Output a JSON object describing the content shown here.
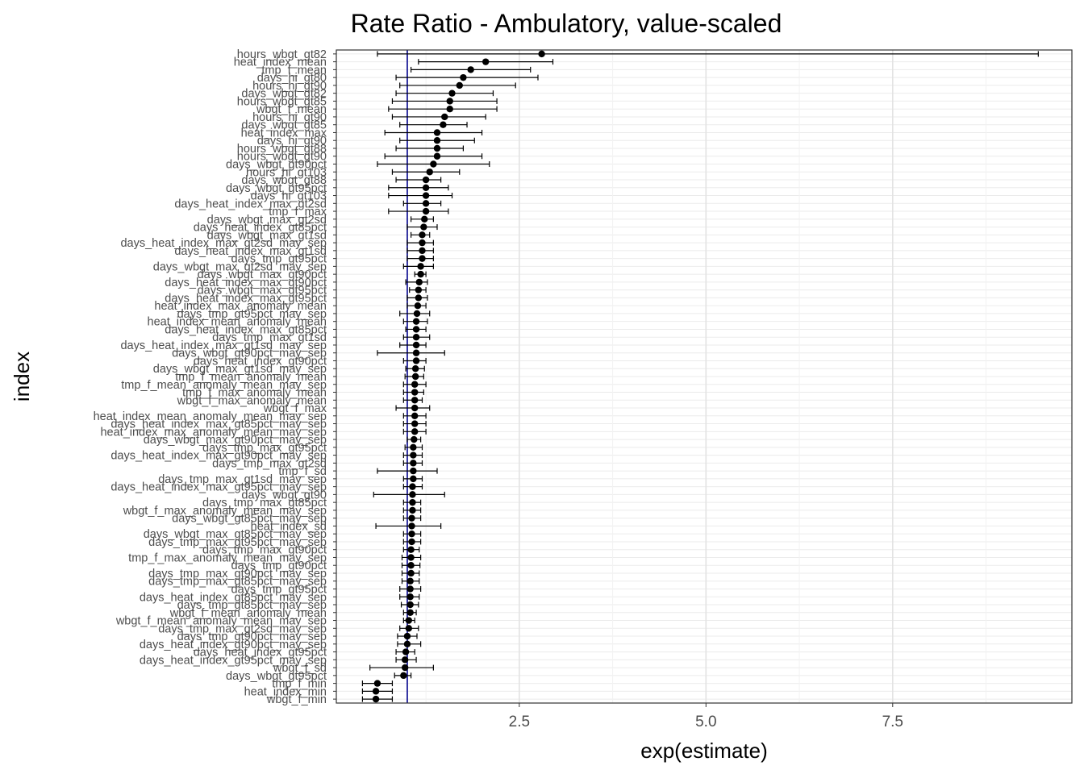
{
  "chart_data": {
    "type": "forest",
    "title": "Rate Ratio - Ambulatory, value-scaled",
    "xlabel": "exp(estimate)",
    "ylabel": "index",
    "xlim": [
      0.05,
      9.9
    ],
    "xticks": [
      2.5,
      5.0,
      7.5
    ],
    "xtick_labels": [
      "2.5",
      "5.0",
      "7.5"
    ],
    "reference_line": 1.0,
    "reference_color": "#00008b",
    "point_color": "#000000",
    "grid": true,
    "points": [
      {
        "label": "hours_wbgt_gt82",
        "estimate": 2.8,
        "low": 0.6,
        "high": 9.45
      },
      {
        "label": "heat_index_mean",
        "estimate": 2.05,
        "low": 1.15,
        "high": 2.95
      },
      {
        "label": "tmp_f_mean",
        "estimate": 1.85,
        "low": 1.05,
        "high": 2.65
      },
      {
        "label": "days_hi_gt80",
        "estimate": 1.75,
        "low": 0.85,
        "high": 2.75
      },
      {
        "label": "hours_hi_gt90",
        "estimate": 1.7,
        "low": 0.9,
        "high": 2.45
      },
      {
        "label": "days_wbgt_gt82",
        "estimate": 1.6,
        "low": 0.85,
        "high": 2.15
      },
      {
        "label": "hours_wbgt_gt85",
        "estimate": 1.57,
        "low": 0.8,
        "high": 2.2
      },
      {
        "label": "wbgt_f_mean",
        "estimate": 1.57,
        "low": 0.75,
        "high": 2.2
      },
      {
        "label": "hours_hi_gt90",
        "estimate": 1.5,
        "low": 0.8,
        "high": 2.05
      },
      {
        "label": "days_wbgt_gt85",
        "estimate": 1.48,
        "low": 0.9,
        "high": 1.8
      },
      {
        "label": "heat_index_max",
        "estimate": 1.4,
        "low": 0.7,
        "high": 2.0
      },
      {
        "label": "days_hi_gt90",
        "estimate": 1.4,
        "low": 0.9,
        "high": 1.9
      },
      {
        "label": "hours_wbgt_gt88",
        "estimate": 1.4,
        "low": 0.85,
        "high": 1.75
      },
      {
        "label": "hours_wbgt_gt90",
        "estimate": 1.4,
        "low": 0.7,
        "high": 2.0
      },
      {
        "label": "days_wbgt_gt90pct",
        "estimate": 1.35,
        "low": 0.6,
        "high": 2.1
      },
      {
        "label": "hours_hi_gt103",
        "estimate": 1.3,
        "low": 0.8,
        "high": 1.7
      },
      {
        "label": "days_wbgt_gt88",
        "estimate": 1.25,
        "low": 0.85,
        "high": 1.45
      },
      {
        "label": "days_wbgt_gt95pct",
        "estimate": 1.25,
        "low": 0.75,
        "high": 1.55
      },
      {
        "label": "days_hi_gt103",
        "estimate": 1.25,
        "low": 0.75,
        "high": 1.6
      },
      {
        "label": "days_heat_index_max_gt2sd",
        "estimate": 1.25,
        "low": 0.95,
        "high": 1.45
      },
      {
        "label": "tmp_f_max",
        "estimate": 1.25,
        "low": 0.75,
        "high": 1.55
      },
      {
        "label": "days_wbgt_max_gt2sd",
        "estimate": 1.23,
        "low": 1.05,
        "high": 1.35
      },
      {
        "label": "days_heat_index_gt85pct",
        "estimate": 1.22,
        "low": 1.0,
        "high": 1.4
      },
      {
        "label": "days_wbgt_max_gt1sd",
        "estimate": 1.2,
        "low": 1.05,
        "high": 1.3
      },
      {
        "label": "days_heat_index_max_gt2sd_may_sep",
        "estimate": 1.2,
        "low": 1.0,
        "high": 1.35
      },
      {
        "label": "days_heat_index_max_gt1sd",
        "estimate": 1.2,
        "low": 1.0,
        "high": 1.35
      },
      {
        "label": "days_tmp_gt95pct",
        "estimate": 1.2,
        "low": 1.0,
        "high": 1.35
      },
      {
        "label": "days_wbgt_max_gt2sd_may_sep",
        "estimate": 1.18,
        "low": 0.95,
        "high": 1.35
      },
      {
        "label": "days_wbgt_max_gt90pct",
        "estimate": 1.18,
        "low": 1.1,
        "high": 1.25
      },
      {
        "label": "days_heat_index_max_gt90pct",
        "estimate": 1.16,
        "low": 0.98,
        "high": 1.27
      },
      {
        "label": "days_wbgt_max_gt95pct",
        "estimate": 1.15,
        "low": 1.03,
        "high": 1.25
      },
      {
        "label": "days_heat_index_max_gt95pct",
        "estimate": 1.15,
        "low": 1.0,
        "high": 1.27
      },
      {
        "label": "heat_index_max_anomaly_mean",
        "estimate": 1.14,
        "low": 1.0,
        "high": 1.25
      },
      {
        "label": "days_tmp_gt95pct_may_sep",
        "estimate": 1.13,
        "low": 0.9,
        "high": 1.3
      },
      {
        "label": "heat_index_mean_anomaly_mean",
        "estimate": 1.12,
        "low": 0.95,
        "high": 1.27
      },
      {
        "label": "days_heat_index_max_gt85pct",
        "estimate": 1.12,
        "low": 0.98,
        "high": 1.25
      },
      {
        "label": "days_tmp_max_gt1sd",
        "estimate": 1.12,
        "low": 0.95,
        "high": 1.3
      },
      {
        "label": "days_heat_index_max_gt1sd_may_sep",
        "estimate": 1.12,
        "low": 0.9,
        "high": 1.25
      },
      {
        "label": "days_wbgt_gt90pct_may_sep",
        "estimate": 1.12,
        "low": 0.6,
        "high": 1.5
      },
      {
        "label": "days_heat_index_gt90pct",
        "estimate": 1.12,
        "low": 0.95,
        "high": 1.25
      },
      {
        "label": "days_wbgt_max_gt1sd_may_sep",
        "estimate": 1.11,
        "low": 0.98,
        "high": 1.23
      },
      {
        "label": "tmp_f_mean_anomaly_mean",
        "estimate": 1.11,
        "low": 0.97,
        "high": 1.22
      },
      {
        "label": "tmp_f_mean_anomaly_mean_may_sep",
        "estimate": 1.1,
        "low": 0.95,
        "high": 1.25
      },
      {
        "label": "tmp_f_max_anomaly_mean",
        "estimate": 1.1,
        "low": 0.95,
        "high": 1.22
      },
      {
        "label": "wbgt_f_max_anomaly_mean",
        "estimate": 1.1,
        "low": 0.95,
        "high": 1.2
      },
      {
        "label": "wbgt_f_max",
        "estimate": 1.1,
        "low": 0.85,
        "high": 1.3
      },
      {
        "label": "heat_index_mean_anomaly_mean_may_sep",
        "estimate": 1.1,
        "low": 0.95,
        "high": 1.25
      },
      {
        "label": "days_heat_index_max_gt85pct_may_sep",
        "estimate": 1.1,
        "low": 0.95,
        "high": 1.25
      },
      {
        "label": "heat_index_max_anomaly_mean_may_sep",
        "estimate": 1.1,
        "low": 0.95,
        "high": 1.25
      },
      {
        "label": "days_wbgt_max_gt90pct_may_sep",
        "estimate": 1.09,
        "low": 1.0,
        "high": 1.18
      },
      {
        "label": "days_tmp_max_gt95pct",
        "estimate": 1.08,
        "low": 0.97,
        "high": 1.2
      },
      {
        "label": "days_heat_index_max_gt90pct_may_sep",
        "estimate": 1.08,
        "low": 0.95,
        "high": 1.2
      },
      {
        "label": "days_tmp_max_gt2sd",
        "estimate": 1.08,
        "low": 0.95,
        "high": 1.2
      },
      {
        "label": "tmp_f_sd",
        "estimate": 1.08,
        "low": 0.6,
        "high": 1.4
      },
      {
        "label": "days_tmp_max_gt1sd_may_sep",
        "estimate": 1.08,
        "low": 0.95,
        "high": 1.2
      },
      {
        "label": "days_heat_index_max_gt95pct_may_sep",
        "estimate": 1.07,
        "low": 0.95,
        "high": 1.2
      },
      {
        "label": "days_wbgt_gt90",
        "estimate": 1.07,
        "low": 0.55,
        "high": 1.5
      },
      {
        "label": "days_tmp_max_gt85pct",
        "estimate": 1.07,
        "low": 0.95,
        "high": 1.18
      },
      {
        "label": "wbgt_f_max_anomaly_mean_may_sep",
        "estimate": 1.07,
        "low": 0.95,
        "high": 1.18
      },
      {
        "label": "days_wbgt_gt85pct_may_sep",
        "estimate": 1.06,
        "low": 0.95,
        "high": 1.18
      },
      {
        "label": "heat_index_sd",
        "estimate": 1.06,
        "low": 0.58,
        "high": 1.45
      },
      {
        "label": "days_wbgt_max_gt85pct_may_sep",
        "estimate": 1.06,
        "low": 0.95,
        "high": 1.18
      },
      {
        "label": "days_tmp_max_gt95pct_may_sep",
        "estimate": 1.06,
        "low": 0.95,
        "high": 1.18
      },
      {
        "label": "days_tmp_max_gt90pct",
        "estimate": 1.05,
        "low": 0.95,
        "high": 1.16
      },
      {
        "label": "tmp_f_max_anomaly_mean_may_sep",
        "estimate": 1.05,
        "low": 0.93,
        "high": 1.18
      },
      {
        "label": "days_tmp_gt90pct",
        "estimate": 1.05,
        "low": 0.93,
        "high": 1.17
      },
      {
        "label": "days_tmp_max_gt90pct_may_sep",
        "estimate": 1.05,
        "low": 0.93,
        "high": 1.16
      },
      {
        "label": "days_tmp_max_gt85pct_may_sep",
        "estimate": 1.04,
        "low": 0.93,
        "high": 1.16
      },
      {
        "label": "days_tmp_gt95pct",
        "estimate": 1.04,
        "low": 0.9,
        "high": 1.18
      },
      {
        "label": "days_heat_index_gt85pct_may_sep",
        "estimate": 1.04,
        "low": 0.9,
        "high": 1.16
      },
      {
        "label": "days_tmp_gt85pct_may_sep",
        "estimate": 1.04,
        "low": 0.92,
        "high": 1.15
      },
      {
        "label": "wbgt_f_mean_anomaly_mean",
        "estimate": 1.04,
        "low": 0.95,
        "high": 1.12
      },
      {
        "label": "wbgt_f_mean_anomaly_mean_may_sep",
        "estimate": 1.02,
        "low": 0.95,
        "high": 1.1
      },
      {
        "label": "days_tmp_max_gt2sd_may_sep",
        "estimate": 1.02,
        "low": 0.9,
        "high": 1.15
      },
      {
        "label": "days_tmp_gt90pct_may_sep",
        "estimate": 1.0,
        "low": 0.87,
        "high": 1.13
      },
      {
        "label": "days_heat_index_gt90pct_may_sep",
        "estimate": 1.0,
        "low": 0.87,
        "high": 1.18
      },
      {
        "label": "days_heat_index_gt95pct",
        "estimate": 0.98,
        "low": 0.85,
        "high": 1.1
      },
      {
        "label": "days_heat_index_gt95pct_may_sep",
        "estimate": 0.97,
        "low": 0.85,
        "high": 1.12
      },
      {
        "label": "wbgt_f_sd",
        "estimate": 0.97,
        "low": 0.5,
        "high": 1.35
      },
      {
        "label": "days_wbgt_gt95pct",
        "estimate": 0.95,
        "low": 0.83,
        "high": 1.05
      },
      {
        "label": "tmp_f_min",
        "estimate": 0.6,
        "low": 0.4,
        "high": 0.8
      },
      {
        "label": "heat_index_min",
        "estimate": 0.58,
        "low": 0.4,
        "high": 0.8
      },
      {
        "label": "wbgt_f_min",
        "estimate": 0.58,
        "low": 0.4,
        "high": 0.8
      }
    ]
  }
}
